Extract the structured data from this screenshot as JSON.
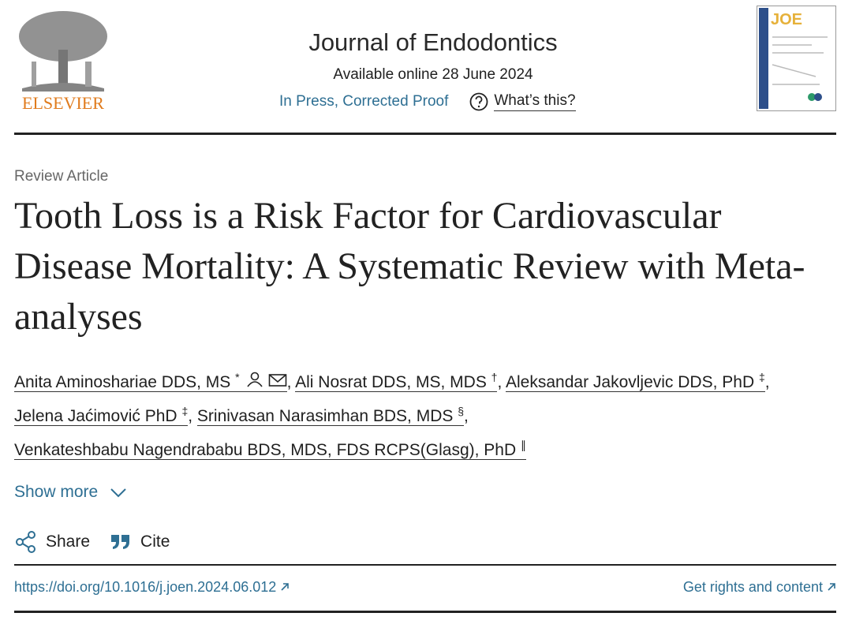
{
  "header": {
    "publisher": "ELSEVIER",
    "journal": "Journal of Endodontics",
    "available": "Available online 28 June 2024",
    "status": "In Press, Corrected Proof",
    "whats_this": "What’s this?",
    "cover_title": "JOE"
  },
  "article": {
    "type": "Review Article",
    "title": "Tooth Loss is a Risk Factor for Cardiovascular Disease Mortality: A Systematic Review with Meta-analyses",
    "separator": ",",
    "authors": [
      {
        "name": "Anita Aminoshariae DDS, MS",
        "mark": "*"
      },
      {
        "name": "Ali Nosrat DDS, MS, MDS",
        "mark": "†"
      },
      {
        "name": "Aleksandar Jakovljevic DDS, PhD",
        "mark": "‡"
      },
      {
        "name": "Jelena Jaćimović PhD",
        "mark": "‡"
      },
      {
        "name": "Srinivasan Narasimhan BDS, MDS",
        "mark": "§"
      },
      {
        "name": "Venkateshbabu Nagendrababu BDS, MDS, FDS RCPS(Glasg), PhD",
        "mark": "∥"
      }
    ],
    "show_more": "Show more",
    "share": "Share",
    "cite": "Cite",
    "doi": "https://doi.org/10.1016/j.joen.2024.06.012",
    "rights": "Get rights and content"
  }
}
